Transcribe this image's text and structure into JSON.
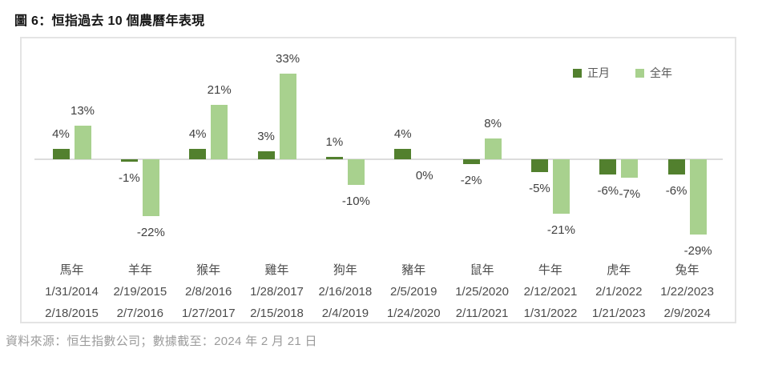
{
  "page": {
    "title": "圖 6：恒指過去 10 個農曆年表現",
    "source": "資料來源：恒生指數公司；數據截至：2024 年 2 月 21 日"
  },
  "legend": {
    "items": [
      {
        "label": "正月",
        "color": "#52802E"
      },
      {
        "label": "全年",
        "color": "#A8D18E"
      }
    ]
  },
  "chart_data": {
    "type": "bar",
    "title": "恒指過去 10 個農曆年表現",
    "unit": "%",
    "categories": [
      "馬年",
      "羊年",
      "猴年",
      "雞年",
      "狗年",
      "豬年",
      "鼠年",
      "牛年",
      "虎年",
      "兔年"
    ],
    "period_start": [
      "1/31/2014",
      "2/19/2015",
      "2/8/2016",
      "1/28/2017",
      "2/16/2018",
      "2/5/2019",
      "1/25/2020",
      "2/12/2021",
      "2/1/2022",
      "1/22/2023"
    ],
    "period_end": [
      "2/18/2015",
      "2/7/2016",
      "1/27/2017",
      "2/15/2018",
      "2/4/2019",
      "1/24/2020",
      "2/11/2021",
      "1/31/2022",
      "1/21/2023",
      "2/9/2024"
    ],
    "series": [
      {
        "name": "正月",
        "color": "#52802E",
        "values": [
          4,
          -1,
          4,
          3,
          1,
          4,
          -2,
          -5,
          -6,
          -6
        ],
        "labels": [
          "4%",
          "-1%",
          "4%",
          "3%",
          "1%",
          "4%",
          "-2%",
          "-5%",
          "-6%",
          "-6%"
        ]
      },
      {
        "name": "全年",
        "color": "#A8D18E",
        "values": [
          13,
          -22,
          21,
          33,
          -10,
          0,
          8,
          -21,
          -7,
          -29
        ],
        "labels": [
          "13%",
          "-22%",
          "21%",
          "33%",
          "-10%",
          "0%",
          "8%",
          "-21%",
          "-7%",
          "-29%"
        ]
      }
    ],
    "ylim": [
      -29,
      33
    ],
    "grid": false,
    "axis_labels_visible": false,
    "legend_position": "top-right"
  },
  "colors": {
    "first_month_bar": "#52802E",
    "full_year_bar": "#A8D18E",
    "axis_line": "#DCDCDC",
    "box_border": "#E4E4E4",
    "value_label_text": "#404040",
    "axis_text": "#4C4C4C",
    "legend_text": "#595959",
    "source_text": "#9B9B9B",
    "title_text": "#151515"
  }
}
